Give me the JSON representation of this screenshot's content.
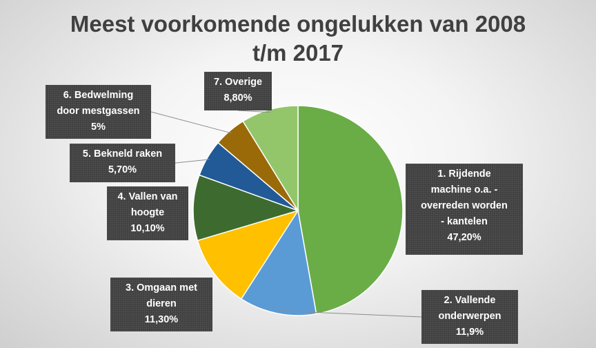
{
  "chart_data": {
    "type": "pie",
    "title": "Meest voorkomende ongelukken van 2008 t/m 2017",
    "title_lines": [
      "Meest voorkomende ongelukken van 2008",
      "t/m 2017"
    ],
    "slices": [
      {
        "label": "1. Rijdende machine o.a. - overreden worden - kantelen",
        "label_lines": [
          "1. Rijdende",
          "machine o.a. -",
          "overreden worden",
          "- kantelen"
        ],
        "value": 47.2,
        "value_label": "47,20%",
        "color": "#6aad47"
      },
      {
        "label": "2. Vallende onderwerpen",
        "label_lines": [
          "2. Vallende",
          "onderwerpen"
        ],
        "value": 11.9,
        "value_label": "11,9%",
        "color": "#5b9bd5"
      },
      {
        "label": "3. Omgaan met dieren",
        "label_lines": [
          "3. Omgaan met",
          "dieren"
        ],
        "value": 11.3,
        "value_label": "11,30%",
        "color": "#ffc000"
      },
      {
        "label": "4. Vallen van hoogte",
        "label_lines": [
          "4. Vallen van",
          "hoogte"
        ],
        "value": 10.1,
        "value_label": "10,10%",
        "color": "#3d6b2f"
      },
      {
        "label": "5. Bekneld raken",
        "label_lines": [
          "5. Bekneld raken"
        ],
        "value": 5.7,
        "value_label": "5,70%",
        "color": "#215a96"
      },
      {
        "label": "6. Bedwelming door mestgassen",
        "label_lines": [
          "6. Bedwelming",
          "door mestgassen"
        ],
        "value": 5,
        "value_label": "5%",
        "color": "#9a6a09"
      },
      {
        "label": "7. Overige",
        "label_lines": [
          "7. Overige"
        ],
        "value": 8.8,
        "value_label": "8,80%",
        "color": "#93c66b"
      }
    ]
  }
}
